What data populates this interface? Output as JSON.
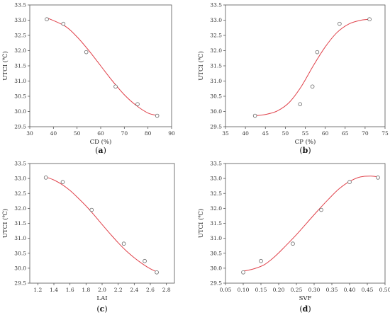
{
  "chart_data": [
    {
      "id": "a",
      "type": "scatter",
      "panel_label": "a",
      "xlabel": "CD (%)",
      "ylabel": "UTCI (℃)",
      "xlim": [
        30,
        90
      ],
      "ylim": [
        29.5,
        33.5
      ],
      "xticks": [
        30,
        40,
        50,
        60,
        70,
        80,
        90
      ],
      "xtick_labels": [
        "30",
        "40",
        "50",
        "60",
        "70",
        "80",
        "90"
      ],
      "yticks": [
        29.5,
        30.0,
        30.5,
        31.0,
        31.5,
        32.0,
        32.5,
        33.0,
        33.5
      ],
      "ytick_labels": [
        "29.5",
        "30.0",
        "30.5",
        "31.0",
        "31.5",
        "32.0",
        "32.5",
        "33.0",
        "33.5"
      ],
      "points": {
        "x": [
          37.2,
          44.2,
          53.9,
          66.3,
          75.6,
          83.9
        ],
        "y": [
          33.03,
          32.88,
          31.95,
          30.82,
          30.24,
          29.86
        ]
      },
      "fit": {
        "x": [
          37.2,
          45,
          50,
          55,
          60,
          65,
          70,
          75,
          80,
          84
        ],
        "y": [
          33.08,
          32.8,
          32.45,
          32.0,
          31.5,
          31.0,
          30.55,
          30.2,
          29.95,
          29.87
        ]
      },
      "grid": false,
      "marker": "open-circle",
      "colors": {
        "fit": "#e0414a",
        "marker": "#666666"
      }
    },
    {
      "id": "b",
      "type": "scatter",
      "panel_label": "b",
      "xlabel": "CP (%)",
      "ylabel": "UTCI (℃)",
      "xlim": [
        35,
        75
      ],
      "ylim": [
        29.5,
        33.5
      ],
      "xticks": [
        35,
        40,
        45,
        50,
        55,
        60,
        65,
        70,
        75
      ],
      "xtick_labels": [
        "35",
        "40",
        "45",
        "50",
        "55",
        "60",
        "65",
        "70",
        "75"
      ],
      "yticks": [
        29.5,
        30.0,
        30.5,
        31.0,
        31.5,
        32.0,
        32.5,
        33.0,
        33.5
      ],
      "ytick_labels": [
        "29.5",
        "30.0",
        "30.5",
        "31.0",
        "31.5",
        "32.0",
        "32.5",
        "33.0",
        "33.5"
      ],
      "points": {
        "x": [
          42.4,
          53.7,
          56.8,
          58.0,
          63.6,
          71.1
        ],
        "y": [
          29.86,
          30.24,
          30.82,
          31.95,
          32.88,
          33.03
        ]
      },
      "fit": {
        "x": [
          42.4,
          45,
          48,
          51,
          54,
          57,
          60,
          63,
          66,
          69,
          71.1
        ],
        "y": [
          29.86,
          29.9,
          30.02,
          30.3,
          30.82,
          31.5,
          32.12,
          32.6,
          32.88,
          33.0,
          33.03
        ]
      },
      "grid": false,
      "marker": "open-circle",
      "colors": {
        "fit": "#e0414a",
        "marker": "#666666"
      }
    },
    {
      "id": "c",
      "type": "scatter",
      "panel_label": "c",
      "xlabel": "LAI",
      "ylabel": "UTCI (℃)",
      "xlim": [
        1.1,
        2.9
      ],
      "ylim": [
        29.5,
        33.5
      ],
      "xticks": [
        1.2,
        1.4,
        1.6,
        1.8,
        2.0,
        2.2,
        2.4,
        2.6,
        2.8
      ],
      "xtick_labels": [
        "1.2",
        "1.4",
        "1.6",
        "1.8",
        "2.0",
        "2.2",
        "2.4",
        "2.6",
        "2.8"
      ],
      "yticks": [
        29.5,
        30.0,
        30.5,
        31.0,
        31.5,
        32.0,
        32.5,
        33.0,
        33.5
      ],
      "ytick_labels": [
        "29.5",
        "30.0",
        "30.5",
        "31.0",
        "31.5",
        "32.0",
        "32.5",
        "33.0",
        "33.5"
      ],
      "points": {
        "x": [
          1.3,
          1.51,
          1.87,
          2.27,
          2.53,
          2.68
        ],
        "y": [
          33.03,
          32.88,
          31.95,
          30.82,
          30.24,
          29.86
        ]
      },
      "fit": {
        "x": [
          1.3,
          1.4,
          1.5,
          1.6,
          1.7,
          1.8,
          1.9,
          2.0,
          2.1,
          2.2,
          2.3,
          2.4,
          2.5,
          2.6,
          2.68
        ],
        "y": [
          33.05,
          32.95,
          32.8,
          32.6,
          32.35,
          32.08,
          31.78,
          31.46,
          31.15,
          30.85,
          30.58,
          30.35,
          30.15,
          29.98,
          29.88
        ]
      },
      "grid": false,
      "marker": "open-circle",
      "colors": {
        "fit": "#e0414a",
        "marker": "#666666"
      }
    },
    {
      "id": "d",
      "type": "scatter",
      "panel_label": "d",
      "xlabel": "SVF",
      "ylabel": "UTCI (℃)",
      "xlim": [
        0.05,
        0.5
      ],
      "ylim": [
        29.5,
        33.5
      ],
      "xticks": [
        0.05,
        0.1,
        0.15,
        0.2,
        0.25,
        0.3,
        0.35,
        0.4,
        0.45,
        0.5
      ],
      "xtick_labels": [
        "0.05",
        "0.10",
        "0.15",
        "0.20",
        "0.25",
        "0.30",
        "0.35",
        "0.40",
        "0.45",
        "0.50"
      ],
      "yticks": [
        29.5,
        30.0,
        30.5,
        31.0,
        31.5,
        32.0,
        32.5,
        33.0,
        33.5
      ],
      "ytick_labels": [
        "29.5",
        "30.0",
        "30.5",
        "31.0",
        "31.5",
        "32.0",
        "32.5",
        "33.0",
        "33.5"
      ],
      "points": {
        "x": [
          0.1,
          0.15,
          0.24,
          0.32,
          0.4,
          0.48
        ],
        "y": [
          29.86,
          30.24,
          30.82,
          31.95,
          32.88,
          33.03
        ]
      },
      "fit": {
        "x": [
          0.1,
          0.13,
          0.16,
          0.19,
          0.22,
          0.25,
          0.28,
          0.31,
          0.34,
          0.37,
          0.4,
          0.43,
          0.46,
          0.48
        ],
        "y": [
          29.9,
          29.98,
          30.12,
          30.4,
          30.75,
          31.12,
          31.52,
          31.92,
          32.3,
          32.65,
          32.9,
          33.05,
          33.08,
          33.05
        ]
      },
      "grid": false,
      "marker": "open-circle",
      "colors": {
        "fit": "#e0414a",
        "marker": "#666666"
      }
    }
  ]
}
